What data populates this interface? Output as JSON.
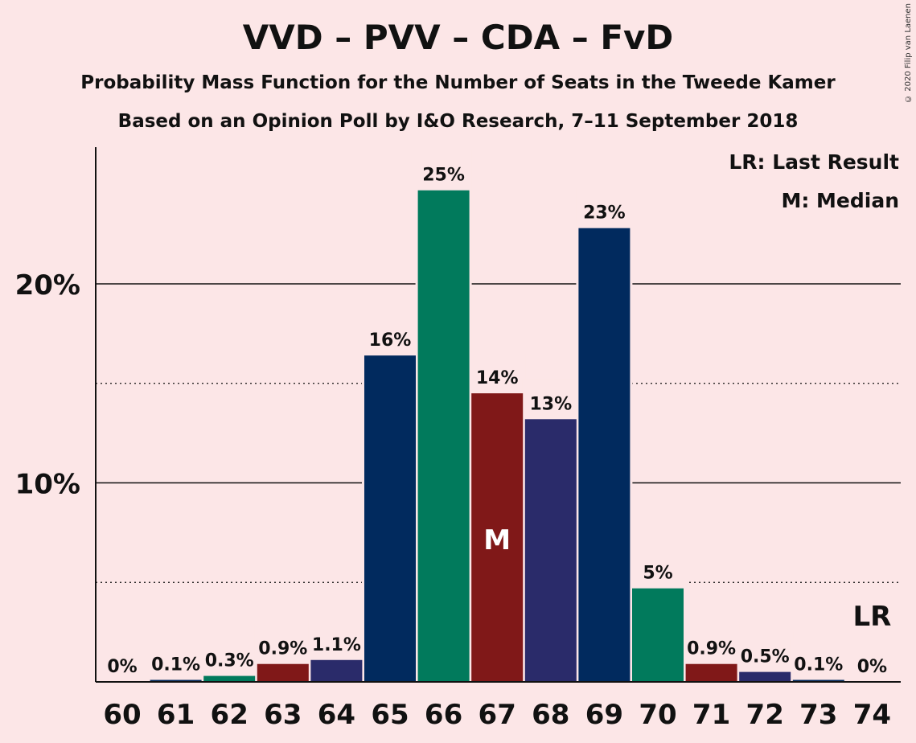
{
  "title": "VVD – PVV – CDA – FvD",
  "subtitle1": "Probability Mass Function for the Number of Seats in the Tweede Kamer",
  "subtitle2": "Based on an Opinion Poll by I&O Research, 7–11 September 2018",
  "copyright": "© 2020 Filip van Laenen",
  "legend": {
    "lr": "LR: Last Result",
    "m": "M: Median"
  },
  "colors": {
    "background": "#fce6e7",
    "vvd": "#012a5e",
    "cda": "#017a5c",
    "pvv": "#801818",
    "fvd": "#2a2b6a"
  },
  "chart_data": {
    "type": "bar",
    "categories": [
      "60",
      "61",
      "62",
      "63",
      "64",
      "65",
      "66",
      "67",
      "68",
      "69",
      "70",
      "71",
      "72",
      "73",
      "74"
    ],
    "values": [
      0,
      0.1,
      0.3,
      0.9,
      1.1,
      16.4,
      24.7,
      14.5,
      13.2,
      22.8,
      4.7,
      0.9,
      0.5,
      0.1,
      0
    ],
    "data_labels": [
      "0%",
      "0.1%",
      "0.3%",
      "0.9%",
      "1.1%",
      "16%",
      "25%",
      "14%",
      "13%",
      "23%",
      "5%",
      "0.9%",
      "0.5%",
      "0.1%",
      "0%"
    ],
    "bar_colors": [
      "#012a5e",
      "#012a5e",
      "#017a5c",
      "#801818",
      "#2a2b6a",
      "#012a5e",
      "#017a5c",
      "#801818",
      "#2a2b6a",
      "#012a5e",
      "#017a5c",
      "#801818",
      "#2a2b6a",
      "#012a5e",
      "#017a5c"
    ],
    "yticks": [
      10,
      20
    ],
    "ytick_labels": [
      "10%",
      "20%"
    ],
    "minor_grid": [
      5,
      15
    ],
    "ylim": [
      0,
      27
    ],
    "median_index": 7,
    "median_label": "M",
    "last_result_index": 14,
    "last_result_label": "LR"
  }
}
